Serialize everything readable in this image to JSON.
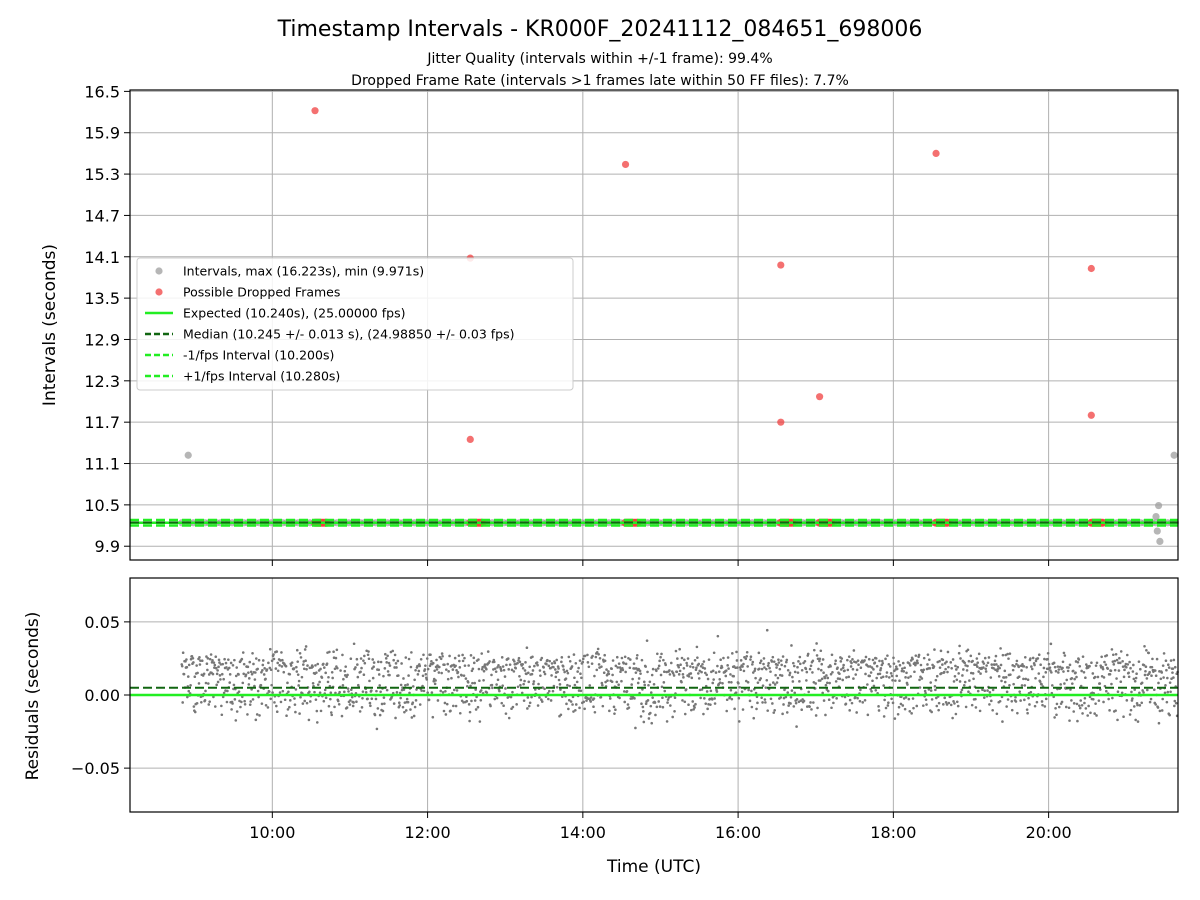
{
  "chart_data": [
    {
      "type": "scatter",
      "title": "Timestamp Intervals - KR000F_20241112_084651_698006",
      "subtitle_lines": [
        "Jitter Quality (intervals within +/-1 frame): 99.4%",
        "Dropped Frame Rate (intervals >1 frames late within 50 FF files): 7.7%"
      ],
      "xlabel": "",
      "ylabel": "Intervals (seconds)",
      "xlim": [
        "08:10",
        "21:40"
      ],
      "ylim": [
        9.7,
        16.52
      ],
      "y_ticks": [
        9.9,
        10.5,
        11.1,
        11.7,
        12.3,
        12.9,
        13.5,
        14.1,
        14.7,
        15.3,
        15.9,
        16.5
      ],
      "y_tick_labels": [
        "9.9",
        "10.5",
        "11.1",
        "11.7",
        "12.3",
        "12.9",
        "13.5",
        "14.1",
        "14.7",
        "15.3",
        "15.9",
        "16.5"
      ],
      "grid": true,
      "legend_position": "center-left",
      "legend": [
        {
          "label": "Intervals, max (16.223s), min (9.971s)",
          "kind": "dot",
          "color": "#9e9e9e"
        },
        {
          "label": "Possible Dropped Frames",
          "kind": "dot",
          "color": "#f04040"
        },
        {
          "label": "Expected (10.240s), (25.00000 fps)",
          "kind": "solid",
          "color": "#22ee22"
        },
        {
          "label": "Median (10.245 +/- 0.013 s), (24.98850 +/- 0.03 fps)",
          "kind": "dash",
          "color": "#116611"
        },
        {
          "label": "-1/fps Interval (10.200s)",
          "kind": "dash",
          "color": "#22ee22"
        },
        {
          "label": "+1/fps Interval (10.280s)",
          "kind": "dash",
          "color": "#22ee22"
        }
      ],
      "lines": {
        "expected": 10.24,
        "median": 10.245,
        "minus_one_frame": 10.2,
        "plus_one_frame": 10.28
      },
      "series": [
        {
          "name": "Intervals, max (16.223s), min (9.971s)",
          "baseline_value": 10.24,
          "baseline_time_range": [
            "08:50",
            "21:40"
          ],
          "outliers": [
            {
              "x": "08:55",
              "y": 11.22
            },
            {
              "x": "21:23",
              "y": 10.33
            },
            {
              "x": "21:24",
              "y": 10.12
            },
            {
              "x": "21:25",
              "y": 10.49
            },
            {
              "x": "21:26",
              "y": 9.97
            },
            {
              "x": "21:37",
              "y": 11.22
            }
          ]
        },
        {
          "name": "Possible Dropped Frames",
          "points": [
            {
              "x": "10:33",
              "y": 16.22
            },
            {
              "x": "12:33",
              "y": 14.08
            },
            {
              "x": "12:33",
              "y": 11.45
            },
            {
              "x": "14:33",
              "y": 15.44
            },
            {
              "x": "16:33",
              "y": 13.98
            },
            {
              "x": "16:33",
              "y": 11.7
            },
            {
              "x": "17:03",
              "y": 12.07
            },
            {
              "x": "18:33",
              "y": 15.6
            },
            {
              "x": "20:33",
              "y": 13.93
            },
            {
              "x": "20:33",
              "y": 11.8
            }
          ],
          "clusters_at_expected": [
            {
              "start": "10:33",
              "end": "10:42"
            },
            {
              "start": "12:33",
              "end": "12:42"
            },
            {
              "start": "14:33",
              "end": "14:42"
            },
            {
              "start": "16:33",
              "end": "16:42"
            },
            {
              "start": "17:03",
              "end": "17:12"
            },
            {
              "start": "18:33",
              "end": "18:42"
            },
            {
              "start": "20:33",
              "end": "20:42"
            }
          ]
        }
      ]
    },
    {
      "type": "scatter",
      "title": "",
      "xlabel": "Time (UTC)",
      "ylabel": "Residuals (seconds)",
      "xlim": [
        "08:10",
        "21:40"
      ],
      "ylim": [
        -0.08,
        0.08
      ],
      "x_ticks": [
        "10:00",
        "12:00",
        "14:00",
        "16:00",
        "18:00",
        "20:00"
      ],
      "x_tick_labels": [
        "10:00",
        "12:00",
        "14:00",
        "16:00",
        "18:00",
        "20:00"
      ],
      "y_ticks": [
        -0.05,
        0.0,
        0.05
      ],
      "y_tick_labels": [
        "−0.05",
        "0.00",
        "0.05"
      ],
      "grid": true,
      "lines": {
        "expected": 0.0,
        "median": 0.005
      },
      "series": [
        {
          "name": "",
          "color": "#777777",
          "time_range": [
            "08:50",
            "21:40"
          ],
          "bands": [
            {
              "center": 0.02,
              "spread": 0.005
            },
            {
              "center": 0.0,
              "spread": 0.008
            }
          ],
          "min": -0.035,
          "max": 0.052
        }
      ]
    }
  ]
}
